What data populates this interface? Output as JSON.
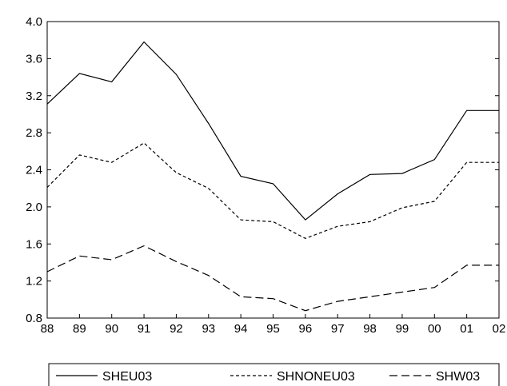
{
  "chart_data": {
    "type": "line",
    "title": "",
    "xlabel": "",
    "ylabel": "",
    "categories": [
      "88",
      "89",
      "90",
      "91",
      "92",
      "93",
      "94",
      "95",
      "96",
      "97",
      "98",
      "99",
      "00",
      "01",
      "02"
    ],
    "ylim": [
      0.8,
      4.0
    ],
    "yticks": [
      "0.8",
      "1.2",
      "1.6",
      "2.0",
      "2.4",
      "2.8",
      "3.2",
      "3.6",
      "4.0"
    ],
    "grid": false,
    "legend_position": "bottom",
    "series": [
      {
        "name": "SHEU03",
        "line_style": "solid",
        "color": "#000000",
        "values": [
          3.11,
          3.44,
          3.35,
          3.78,
          3.43,
          2.9,
          2.33,
          2.25,
          1.86,
          2.14,
          2.35,
          2.36,
          2.51,
          3.04,
          3.04
        ]
      },
      {
        "name": "SHNONEU03",
        "line_style": "short-dash",
        "color": "#000000",
        "values": [
          2.21,
          2.56,
          2.48,
          2.69,
          2.37,
          2.2,
          1.86,
          1.84,
          1.66,
          1.79,
          1.84,
          1.99,
          2.06,
          2.48,
          2.48
        ]
      },
      {
        "name": "SHW03",
        "line_style": "long-dash",
        "color": "#000000",
        "values": [
          1.3,
          1.47,
          1.43,
          1.58,
          1.41,
          1.26,
          1.03,
          1.01,
          0.88,
          0.98,
          1.03,
          1.08,
          1.13,
          1.37,
          1.37
        ]
      }
    ]
  }
}
